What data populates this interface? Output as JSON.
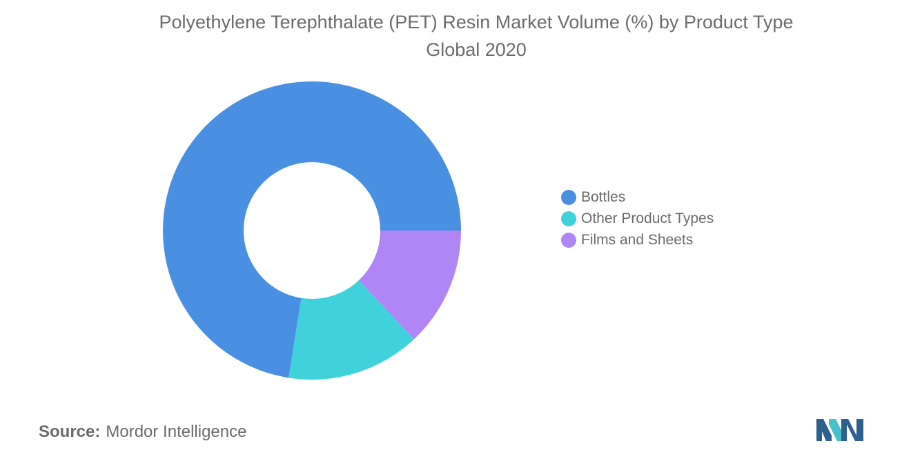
{
  "chart_data": {
    "type": "pie",
    "donut": true,
    "title": "Polyethylene Terephthalate (PET) Resin Market Volume (%) by Product Type",
    "subtitle": "Global 2020",
    "categories": [
      "Bottles",
      "Other Product Types",
      "Films and Sheets"
    ],
    "values": [
      72.5,
      14.5,
      13.0
    ],
    "colors": [
      "#4a90e2",
      "#3fd2db",
      "#b085f5"
    ],
    "legend_position": "right"
  },
  "source": {
    "label": "Source:",
    "text": "Mordor Intelligence"
  },
  "logo": {
    "icon": "mordor-intelligence-logo-icon",
    "colors": [
      "#2f5f8f",
      "#45c1c9"
    ]
  }
}
